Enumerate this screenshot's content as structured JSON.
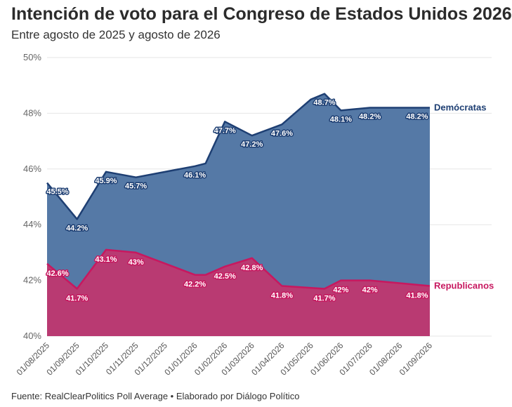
{
  "header": {
    "title": "Intención de voto para el Congreso de Estados Unidos 2026",
    "subtitle": "Entre agosto de 2025 y agosto de 2026"
  },
  "footer": {
    "source": "Fuente: RealClearPolitics Poll Average • Elaborado por Diálogo Político"
  },
  "colors": {
    "dem_line": "#1e3f73",
    "dem_fill": "#5579a6",
    "rep_line": "#c7185f",
    "rep_fill": "#b93a72",
    "grid": "#e6e6e6"
  },
  "chart_data": {
    "type": "area",
    "title": "Intención de voto para el Congreso de Estados Unidos 2026",
    "subtitle": "Entre agosto de 2025 y agosto de 2026",
    "xlabel": "",
    "ylabel": "",
    "ylim": [
      40,
      50
    ],
    "yticks": [
      "40%",
      "42%",
      "44%",
      "46%",
      "48%",
      "50%"
    ],
    "grid": true,
    "x_range": [
      "2025-08-01",
      "2026-09-01"
    ],
    "x_ticks": [
      "01/08/2025",
      "01/09/2025",
      "01/10/2025",
      "01/11/2025",
      "01/12/2025",
      "01/01/2026",
      "01/02/2026",
      "01/03/2026",
      "01/04/2026",
      "01/05/2026",
      "01/06/2026",
      "01/07/2026",
      "01/08/2026",
      "01/09/2026"
    ],
    "series": [
      {
        "name": "Demócratas",
        "points": [
          {
            "x": "2025-08-01",
            "y": 45.5,
            "label": "45.5%"
          },
          {
            "x": "2025-09-01",
            "y": 44.2,
            "label": "44.2%"
          },
          {
            "x": "2025-10-01",
            "y": 45.9,
            "label": "45.9%"
          },
          {
            "x": "2025-11-01",
            "y": 45.7,
            "label": "45.7%"
          },
          {
            "x": "2026-01-01",
            "y": 46.1,
            "label": "46.1%"
          },
          {
            "x": "2026-01-12",
            "y": 46.2,
            "label": ""
          },
          {
            "x": "2026-02-01",
            "y": 47.7,
            "label": "47.7%"
          },
          {
            "x": "2026-03-01",
            "y": 47.2,
            "label": "47.2%"
          },
          {
            "x": "2026-04-01",
            "y": 47.6,
            "label": "47.6%"
          },
          {
            "x": "2026-05-01",
            "y": 48.5,
            "label": ""
          },
          {
            "x": "2026-05-15",
            "y": 48.7,
            "label": "48.7%"
          },
          {
            "x": "2026-06-01",
            "y": 48.1,
            "label": "48.1%"
          },
          {
            "x": "2026-07-01",
            "y": 48.2,
            "label": "48.2%"
          },
          {
            "x": "2026-09-01",
            "y": 48.2,
            "label": "48.2%"
          }
        ]
      },
      {
        "name": "Republicanos",
        "points": [
          {
            "x": "2025-08-01",
            "y": 42.6,
            "label": "42.6%"
          },
          {
            "x": "2025-09-01",
            "y": 41.7,
            "label": "41.7%"
          },
          {
            "x": "2025-10-01",
            "y": 43.1,
            "label": "43.1%"
          },
          {
            "x": "2025-11-01",
            "y": 43.0,
            "label": "43%"
          },
          {
            "x": "2026-01-01",
            "y": 42.2,
            "label": "42.2%"
          },
          {
            "x": "2026-01-12",
            "y": 42.2,
            "label": ""
          },
          {
            "x": "2026-02-01",
            "y": 42.5,
            "label": "42.5%"
          },
          {
            "x": "2026-03-01",
            "y": 42.8,
            "label": "42.8%"
          },
          {
            "x": "2026-04-01",
            "y": 41.8,
            "label": "41.8%"
          },
          {
            "x": "2026-05-15",
            "y": 41.7,
            "label": "41.7%"
          },
          {
            "x": "2026-06-01",
            "y": 42.0,
            "label": "42%"
          },
          {
            "x": "2026-07-01",
            "y": 42.0,
            "label": "42%"
          },
          {
            "x": "2026-09-01",
            "y": 41.8,
            "label": "41.8%"
          }
        ]
      }
    ]
  }
}
